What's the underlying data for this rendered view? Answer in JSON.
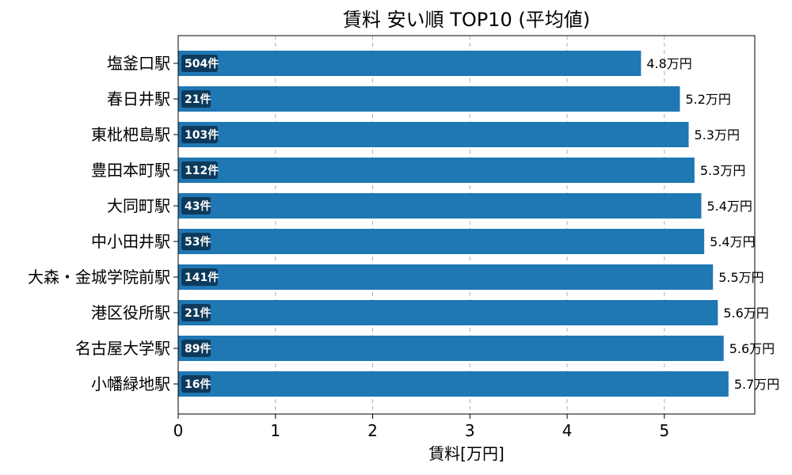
{
  "chart_data": {
    "type": "bar",
    "orientation": "horizontal",
    "title": "賃料 安い順 TOP10 (平均値)",
    "xlabel": "賃料[万円]",
    "ylabel": "",
    "xlim": [
      0,
      5.93
    ],
    "xticks": [
      "0",
      "1",
      "2",
      "3",
      "4",
      "5"
    ],
    "grid": "x-dashed",
    "bar_color": "#1f77b4",
    "count_badge_color": "#0d3a5c",
    "categories": [
      "塩釜口駅",
      "春日井駅",
      "東枇杷島駅",
      "豊田本町駅",
      "大同町駅",
      "中小田井駅",
      "大森・金城学院前駅",
      "港区役所駅",
      "名古屋大学駅",
      "小幡緑地駅"
    ],
    "values": [
      4.76,
      5.16,
      5.25,
      5.31,
      5.38,
      5.41,
      5.5,
      5.55,
      5.61,
      5.66
    ],
    "value_labels": [
      "4.8万円",
      "5.2万円",
      "5.3万円",
      "5.3万円",
      "5.4万円",
      "5.4万円",
      "5.5万円",
      "5.6万円",
      "5.6万円",
      "5.7万円"
    ],
    "counts": [
      "504件",
      "21件",
      "103件",
      "112件",
      "43件",
      "53件",
      "141件",
      "21件",
      "89件",
      "16件"
    ]
  }
}
